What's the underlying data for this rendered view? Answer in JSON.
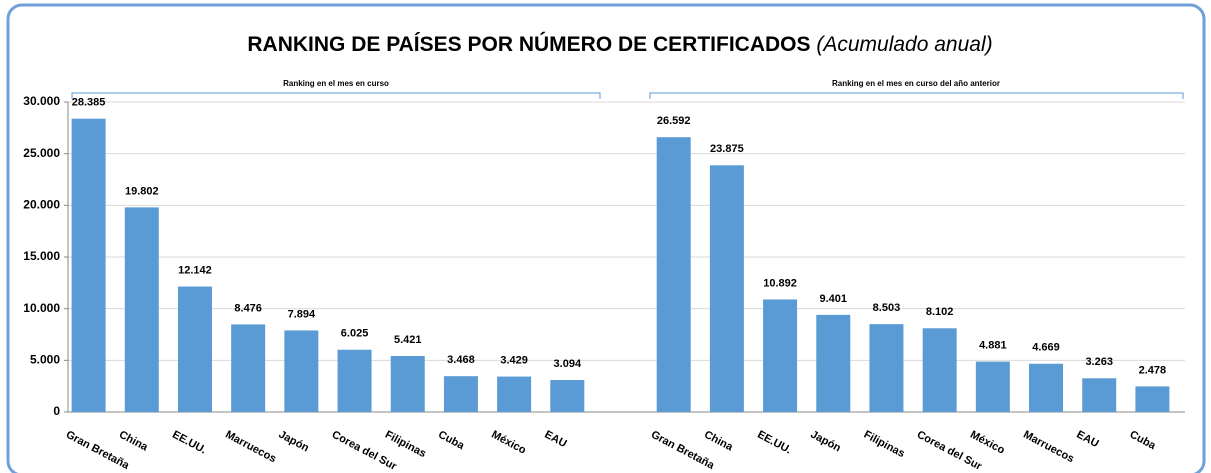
{
  "chart_data": {
    "type": "bar",
    "title": "RANKING DE PAÍSES POR NÚMERO DE CERTIFICADOS",
    "subtitle": "(Acumulado anual)",
    "annotations": [
      "Ranking en el mes en curso",
      "Ranking en el mes en curso del año anterior"
    ],
    "categories": [
      "Gran Bretaña",
      "China",
      "EE.UU.",
      "Marruecos",
      "Japón",
      "Corea del Sur",
      "Filipinas",
      "Cuba",
      "México",
      "EAU",
      null,
      "Gran Bretaña",
      "China",
      "EE.UU.",
      "Japón",
      "Filipinas",
      "Corea del Sur",
      "México",
      "Marruecos",
      "EAU",
      "Cuba"
    ],
    "values": [
      28385,
      19802,
      12142,
      8476,
      7894,
      6025,
      5421,
      3468,
      3429,
      3094,
      null,
      26592,
      23875,
      10892,
      9401,
      8503,
      8102,
      4881,
      4669,
      3263,
      2478
    ],
    "value_labels": [
      "28.385",
      "19.802",
      "12.142",
      "8.476",
      "7.894",
      "6.025",
      "5.421",
      "3.468",
      "3.429",
      "3.094",
      null,
      "26.592",
      "23.875",
      "10.892",
      "9.401",
      "8.503",
      "8.102",
      "4.881",
      "4.669",
      "3.263",
      "2.478"
    ],
    "color": "#5b9bd5",
    "ylim": [
      0,
      30000
    ],
    "yticks": [
      0,
      {
        "value": 5000,
        "label": "5.000"
      },
      {
        "value": 10000,
        "label": "10.000"
      },
      {
        "value": 15000,
        "label": "15.000"
      },
      {
        "value": 20000,
        "label": "20.000"
      },
      {
        "value": 25000,
        "label": "25.000"
      },
      {
        "value": 30000,
        "label": "30.000"
      }
    ],
    "grid": true
  }
}
